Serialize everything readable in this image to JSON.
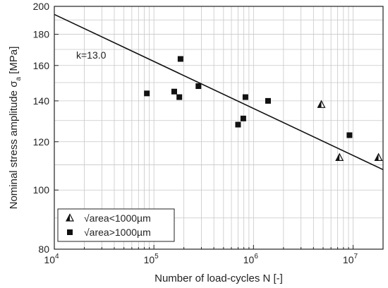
{
  "chart_data": {
    "type": "scatter",
    "title": "",
    "xlabel": "Number of load-cycles N [-]",
    "ylabel": "Nominal stress amplitude σ",
    "ylabel_subscript": "a",
    "ylabel_unit": " [MPa]",
    "x_scale": "log",
    "y_scale": "log",
    "xlim": [
      10000,
      20000000
    ],
    "ylim": [
      80,
      200
    ],
    "x_ticks": [
      {
        "value": 10000,
        "base": "10",
        "exp": "4"
      },
      {
        "value": 100000,
        "base": "10",
        "exp": "5"
      },
      {
        "value": 1000000,
        "base": "10",
        "exp": "6"
      },
      {
        "value": 10000000,
        "base": "10",
        "exp": "7"
      }
    ],
    "y_ticks": [
      {
        "value": 80,
        "label": "80"
      },
      {
        "value": 100,
        "label": "100"
      },
      {
        "value": 120,
        "label": "120"
      },
      {
        "value": 140,
        "label": "140"
      },
      {
        "value": 160,
        "label": "160"
      },
      {
        "value": 180,
        "label": "180"
      },
      {
        "value": 200,
        "label": "200"
      }
    ],
    "y_gridlines": [
      80,
      90,
      100,
      110,
      120,
      130,
      140,
      150,
      160,
      170,
      180,
      190,
      200
    ],
    "grid": true,
    "legend_position": "bottom-left",
    "series": [
      {
        "name": "√area<1000µm",
        "marker": "triangle",
        "points": [
          {
            "x": 4800000,
            "y": 138
          },
          {
            "x": 7300000,
            "y": 113
          },
          {
            "x": 18000000,
            "y": 113
          }
        ]
      },
      {
        "name": "√area>1000µm",
        "marker": "square",
        "points": [
          {
            "x": 85000,
            "y": 144
          },
          {
            "x": 160000,
            "y": 145
          },
          {
            "x": 180000,
            "y": 142
          },
          {
            "x": 185000,
            "y": 164
          },
          {
            "x": 280000,
            "y": 148
          },
          {
            "x": 700000,
            "y": 128
          },
          {
            "x": 790000,
            "y": 131
          },
          {
            "x": 830000,
            "y": 142
          },
          {
            "x": 1400000,
            "y": 140
          },
          {
            "x": 9200000,
            "y": 123
          }
        ]
      }
    ],
    "fit_line": {
      "label": "k=13.0",
      "points": [
        {
          "x": 10000,
          "y": 194
        },
        {
          "x": 20000000,
          "y": 108
        }
      ]
    }
  }
}
